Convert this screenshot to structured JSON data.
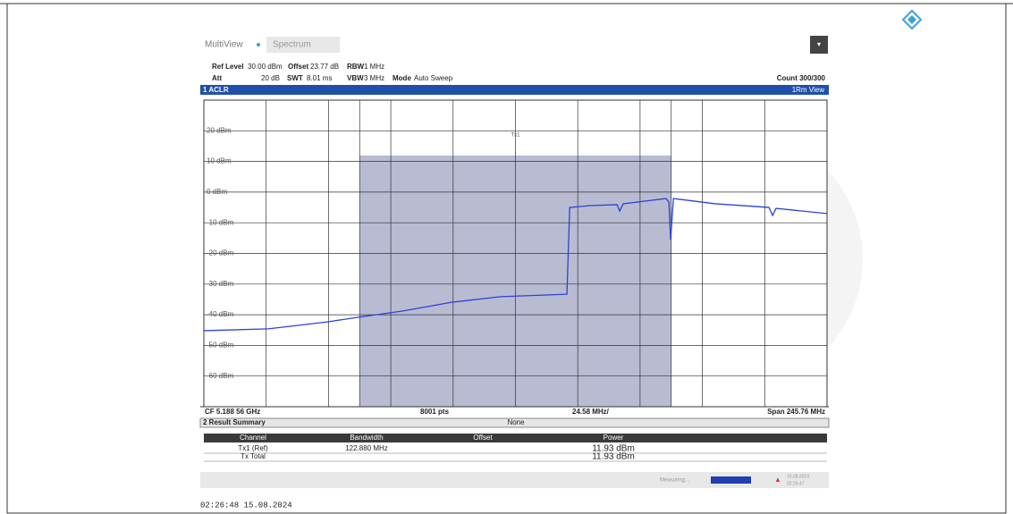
{
  "header": {
    "tab_active": "MultiView",
    "tab_other": "Spectrum",
    "count": "Count 300/300"
  },
  "settings": {
    "ref_level_label": "Ref Level",
    "ref_level": "30.00 dBm",
    "offset_label": "Offset",
    "offset": "23.77 dB",
    "rbw_label": "RBW",
    "rbw": "1 MHz",
    "att_label": "Att",
    "att": "20 dB",
    "swt_label": "SWT",
    "swt": "8.01 ms",
    "vbw_label": "VBW",
    "vbw": "3 MHz",
    "mode_label": "Mode",
    "mode": "Auto Sweep"
  },
  "window1": {
    "title": "1 ACLR",
    "view": "1Rm View",
    "cf": "CF 5.188 56 GHz",
    "points": "8001 pts",
    "per_div": "24.58 MHz/",
    "span": "Span 245.76 MHz"
  },
  "chart_data": {
    "type": "line",
    "channel": {
      "label": "Tx1",
      "lower": -61.44,
      "upper": 61.44,
      "power": 11.93
    },
    "x": [
      -122.88,
      -97.5,
      -73.9,
      -61.9,
      -44.6,
      -24.9,
      -5.8,
      20.3,
      21.4,
      29.5,
      40.1,
      41.1,
      42.5,
      59.4,
      60.5,
      61.2,
      62.3,
      78.8,
      100.0,
      101.4,
      102.8,
      122.88
    ],
    "series": [
      {
        "name": "1Rm",
        "color": "#2a44d6",
        "values": [
          -45.2,
          -44.6,
          -42.3,
          -40.8,
          -38.8,
          -35.9,
          -34.1,
          -33.3,
          -5.0,
          -4.4,
          -4.1,
          -6.2,
          -3.8,
          -2.1,
          -3.2,
          -15.5,
          -2.1,
          -3.8,
          -5.0,
          -7.6,
          -5.3,
          -7.0
        ]
      }
    ],
    "xlim": [
      -122.88,
      122.88
    ],
    "xticks": [
      -98.304,
      -73.728,
      -49.152,
      -24.576,
      0,
      24.576,
      49.152,
      73.728,
      98.304
    ],
    "ylim": [
      -70,
      30
    ],
    "yticks": [
      {
        "value": 20,
        "label": "20 dBm"
      },
      {
        "value": 10,
        "label": "10 dBm"
      },
      {
        "value": 0,
        "label": "0 dBm"
      },
      {
        "value": -10,
        "label": "-10 dBm"
      },
      {
        "value": -20,
        "label": "-20 dBm"
      },
      {
        "value": -30,
        "label": "-30 dBm"
      },
      {
        "value": -40,
        "label": "-40 dBm"
      },
      {
        "value": -50,
        "label": "-50 dBm"
      },
      {
        "value": -60,
        "label": "-60 dBm"
      }
    ],
    "grid": true
  },
  "window2": {
    "title": "2 Result Summary",
    "mode": "None",
    "columns": [
      "Channel",
      "Bandwidth",
      "Offset",
      "Power"
    ],
    "rows": [
      {
        "channel": "Tx1 (Ref)",
        "bandwidth": "122.880 MHz",
        "power": "11.93 dBm"
      },
      {
        "channel": "Tx Total",
        "power": "11.93 dBm"
      }
    ]
  },
  "status": {
    "measuring": "Measuring...",
    "date": "15.08.2024",
    "time": "02:26:47"
  },
  "footer": {
    "timestamp": "02:26:48  15.08.2024"
  }
}
